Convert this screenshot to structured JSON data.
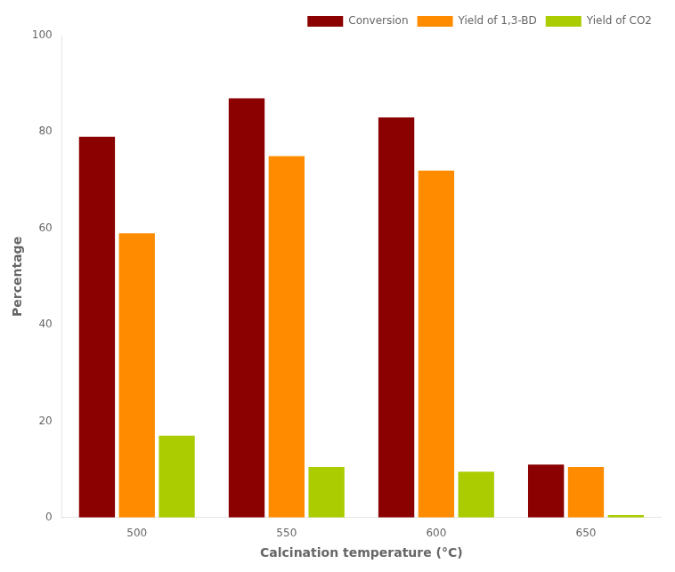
{
  "chart_data": {
    "type": "bar",
    "xlabel": "Calcination temperature (°C)",
    "ylabel": "Percentage",
    "categories": [
      "500",
      "550",
      "600",
      "650"
    ],
    "series": [
      {
        "name": "Conversion",
        "color": "#8B0000",
        "values": [
          79,
          87,
          83,
          11
        ]
      },
      {
        "name": "Yield of 1,3-BD",
        "color": "#FF8C00",
        "values": [
          59,
          75,
          72,
          10.5
        ]
      },
      {
        "name": "Yield of CO2",
        "color": "#AACC00",
        "values": [
          17,
          10.5,
          9.5,
          0.5
        ]
      }
    ],
    "ylim": [
      0,
      100
    ],
    "yticks": [
      0,
      20,
      40,
      60,
      80,
      100
    ],
    "grid": false,
    "legend": "upper right"
  }
}
